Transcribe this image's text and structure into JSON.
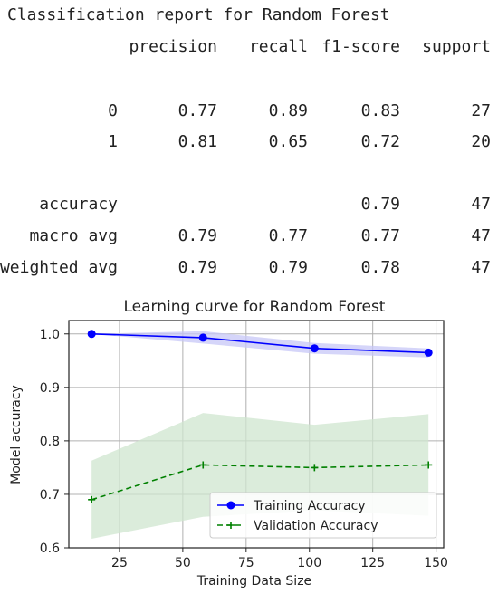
{
  "report": {
    "title": "Classification report for Random Forest",
    "headers": [
      "precision",
      "recall",
      "f1-score",
      "support"
    ],
    "rows": [
      {
        "label": "0",
        "precision": "0.77",
        "recall": "0.89",
        "f1": "0.83",
        "support": "27"
      },
      {
        "label": "1",
        "precision": "0.81",
        "recall": "0.65",
        "f1": "0.72",
        "support": "20"
      },
      {
        "label": "accuracy",
        "precision": "",
        "recall": "",
        "f1": "0.79",
        "support": "47"
      },
      {
        "label": "macro avg",
        "precision": "0.79",
        "recall": "0.77",
        "f1": "0.77",
        "support": "47"
      },
      {
        "label": "weighted avg",
        "precision": "0.79",
        "recall": "0.79",
        "f1": "0.78",
        "support": "47"
      }
    ]
  },
  "chart_data": {
    "type": "line",
    "title": "Learning curve for Random Forest",
    "xlabel": "Training Data Size",
    "ylabel": "Model accuracy",
    "xlim": [
      5,
      153
    ],
    "ylim": [
      0.6,
      1.025
    ],
    "xticks": [
      25,
      50,
      75,
      100,
      125,
      150
    ],
    "yticks": [
      0.6,
      0.7,
      0.8,
      0.9,
      1.0
    ],
    "grid": true,
    "legend_position": "bottom-right",
    "x": [
      14,
      58,
      102,
      147
    ],
    "series": [
      {
        "name": "Training Accuracy",
        "values": [
          1.0,
          0.993,
          0.973,
          0.965
        ],
        "band_lower": [
          1.0,
          0.982,
          0.963,
          0.956
        ],
        "band_upper": [
          1.0,
          1.005,
          0.983,
          0.973
        ],
        "color": "#0000ff",
        "marker": "circle",
        "linestyle": "solid",
        "band_color": "#c7c7f7"
      },
      {
        "name": "Validation Accuracy",
        "values": [
          0.69,
          0.755,
          0.75,
          0.755
        ],
        "band_lower": [
          0.617,
          0.658,
          0.67,
          0.66
        ],
        "band_upper": [
          0.763,
          0.852,
          0.83,
          0.85
        ],
        "color": "#008000",
        "marker": "plus",
        "linestyle": "dashed",
        "band_color": "#cfe5cf"
      }
    ]
  }
}
